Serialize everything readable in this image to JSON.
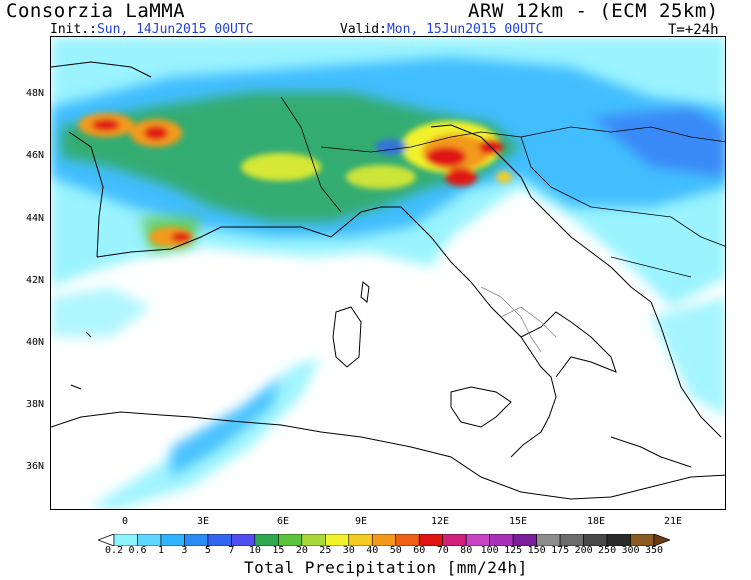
{
  "header": {
    "source": "Consorzia LaMMA",
    "model": "ARW 12km - (ECM 25km)",
    "init_label": "Init.:",
    "init_value": "Sun, 14Jun2015 00UTC",
    "valid_label": "Valid:",
    "valid_value": "Mon, 15Jun2015 00UTC",
    "step": "T=+24h"
  },
  "map": {
    "lat_labels": [
      "48N",
      "46N",
      "44N",
      "42N",
      "40N",
      "38N",
      "36N"
    ],
    "lon_labels": [
      "0",
      "3E",
      "6E",
      "9E",
      "12E",
      "15E",
      "18E",
      "21E"
    ]
  },
  "colorbar": {
    "title": "Total Precipitation [mm/24h]",
    "levels": [
      "0.2",
      "0.6",
      "1",
      "3",
      "5",
      "7",
      "10",
      "15",
      "20",
      "25",
      "30",
      "40",
      "50",
      "60",
      "70",
      "80",
      "100",
      "125",
      "150",
      "175",
      "200",
      "250",
      "300",
      "350"
    ],
    "colors": [
      "#8ff2ff",
      "#5fd8ff",
      "#31b4ff",
      "#2b8cf6",
      "#3366f0",
      "#4f4ff0",
      "#2fa84f",
      "#5cc43c",
      "#a8d83a",
      "#f2f22a",
      "#f6cc24",
      "#f39a1c",
      "#ef5f15",
      "#e01212",
      "#d12079",
      "#c844c2",
      "#a830b8",
      "#7a1f99",
      "#8c8c8c",
      "#6c6c6c",
      "#484848",
      "#2a2a2a",
      "#8a5a20",
      "#b07028",
      "#6b3c10"
    ]
  }
}
